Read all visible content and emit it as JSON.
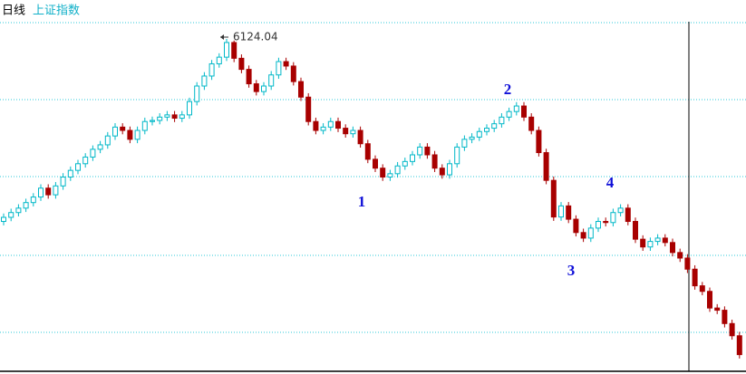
{
  "period": "日线",
  "chart_data": {
    "type": "candlestick",
    "title": "上证指数",
    "ylim": [
      3130,
      6475
    ],
    "up_color": "#00b8c8",
    "down_color": "#a80000",
    "annotations": [
      "1",
      "2",
      "3",
      "4"
    ],
    "open": [
      4480,
      4517,
      4560,
      4600,
      4650,
      4700,
      4780,
      4720,
      4800,
      4880,
      4940,
      5000,
      5060,
      5130,
      5170,
      5250,
      5330,
      5300,
      5220,
      5300,
      5380,
      5390,
      5420,
      5440,
      5410,
      5440,
      5560,
      5700,
      5790,
      5900,
      5960,
      6092,
      5950,
      5850,
      5720,
      5650,
      5700,
      5800,
      5920,
      5880,
      5740,
      5600,
      5380,
      5300,
      5330,
      5380,
      5320,
      5270,
      5300,
      5180,
      5040,
      4960,
      4880,
      4910,
      4980,
      5020,
      5080,
      5150,
      5080,
      4960,
      4900,
      5000,
      5150,
      5220,
      5240,
      5290,
      5320,
      5360,
      5420,
      5470,
      5520,
      5420,
      5300,
      5100,
      4850,
      4520,
      4620,
      4500,
      4380,
      4330,
      4420,
      4480,
      4470,
      4560,
      4600,
      4480,
      4320,
      4250,
      4300,
      4330,
      4290,
      4200,
      4150,
      4050,
      3900,
      3850,
      3700,
      3680,
      3560,
      3450
    ],
    "high": [
      4552,
      4595,
      4635,
      4685,
      4735,
      4815,
      4815,
      4835,
      4915,
      4975,
      5035,
      5095,
      5165,
      5205,
      5285,
      5365,
      5365,
      5335,
      5335,
      5415,
      5425,
      5455,
      5475,
      5475,
      5475,
      5595,
      5735,
      5825,
      5935,
      5995,
      6124.04,
      6110,
      5985,
      5885,
      5755,
      5735,
      5835,
      5955,
      5955,
      5915,
      5775,
      5635,
      5415,
      5365,
      5415,
      5415,
      5355,
      5335,
      5335,
      5215,
      5075,
      4995,
      4945,
      5015,
      5055,
      5115,
      5185,
      5185,
      5115,
      4995,
      5035,
      5185,
      5255,
      5275,
      5325,
      5355,
      5395,
      5455,
      5505,
      5555,
      5555,
      5455,
      5335,
      5135,
      4885,
      4655,
      4655,
      4535,
      4415,
      4455,
      4515,
      4515,
      4595,
      4635,
      4635,
      4515,
      4355,
      4335,
      4365,
      4365,
      4325,
      4235,
      4185,
      4085,
      3935,
      3885,
      3735,
      3715,
      3595,
      3485
    ],
    "low": [
      4445,
      4482,
      4525,
      4565,
      4615,
      4665,
      4685,
      4685,
      4765,
      4845,
      4905,
      4965,
      5025,
      5095,
      5135,
      5215,
      5265,
      5185,
      5185,
      5265,
      5345,
      5355,
      5385,
      5375,
      5375,
      5405,
      5525,
      5665,
      5755,
      5865,
      5925,
      5915,
      5815,
      5685,
      5615,
      5615,
      5665,
      5765,
      5845,
      5705,
      5565,
      5345,
      5265,
      5265,
      5295,
      5285,
      5235,
      5235,
      5145,
      5005,
      4925,
      4845,
      4845,
      4875,
      4945,
      4985,
      5045,
      5045,
      4925,
      4865,
      4865,
      4965,
      5115,
      5185,
      5205,
      5255,
      5285,
      5325,
      5385,
      5435,
      5385,
      5265,
      5065,
      4815,
      4485,
      4485,
      4465,
      4345,
      4295,
      4295,
      4385,
      4435,
      4435,
      4525,
      4445,
      4285,
      4215,
      4215,
      4265,
      4255,
      4165,
      4115,
      4015,
      3865,
      3815,
      3665,
      3645,
      3525,
      3415,
      3245
    ],
    "close": [
      4517,
      4560,
      4600,
      4650,
      4700,
      4780,
      4720,
      4800,
      4880,
      4940,
      5000,
      5060,
      5130,
      5170,
      5250,
      5330,
      5300,
      5220,
      5300,
      5380,
      5390,
      5420,
      5440,
      5410,
      5440,
      5560,
      5700,
      5790,
      5900,
      5960,
      6092,
      5950,
      5850,
      5720,
      5650,
      5700,
      5800,
      5920,
      5880,
      5740,
      5600,
      5380,
      5300,
      5330,
      5380,
      5320,
      5270,
      5300,
      5180,
      5040,
      4960,
      4880,
      4910,
      4980,
      5020,
      5080,
      5150,
      5080,
      4960,
      4900,
      5000,
      5150,
      5220,
      5240,
      5290,
      5320,
      5360,
      5420,
      5470,
      5520,
      5420,
      5300,
      5100,
      4850,
      4520,
      4620,
      4500,
      4380,
      4330,
      4420,
      4480,
      4470,
      4560,
      4600,
      4480,
      4320,
      4250,
      4300,
      4330,
      4290,
      4200,
      4150,
      4050,
      3900,
      3850,
      3700,
      3680,
      3560,
      3450,
      3280
    ]
  }
}
